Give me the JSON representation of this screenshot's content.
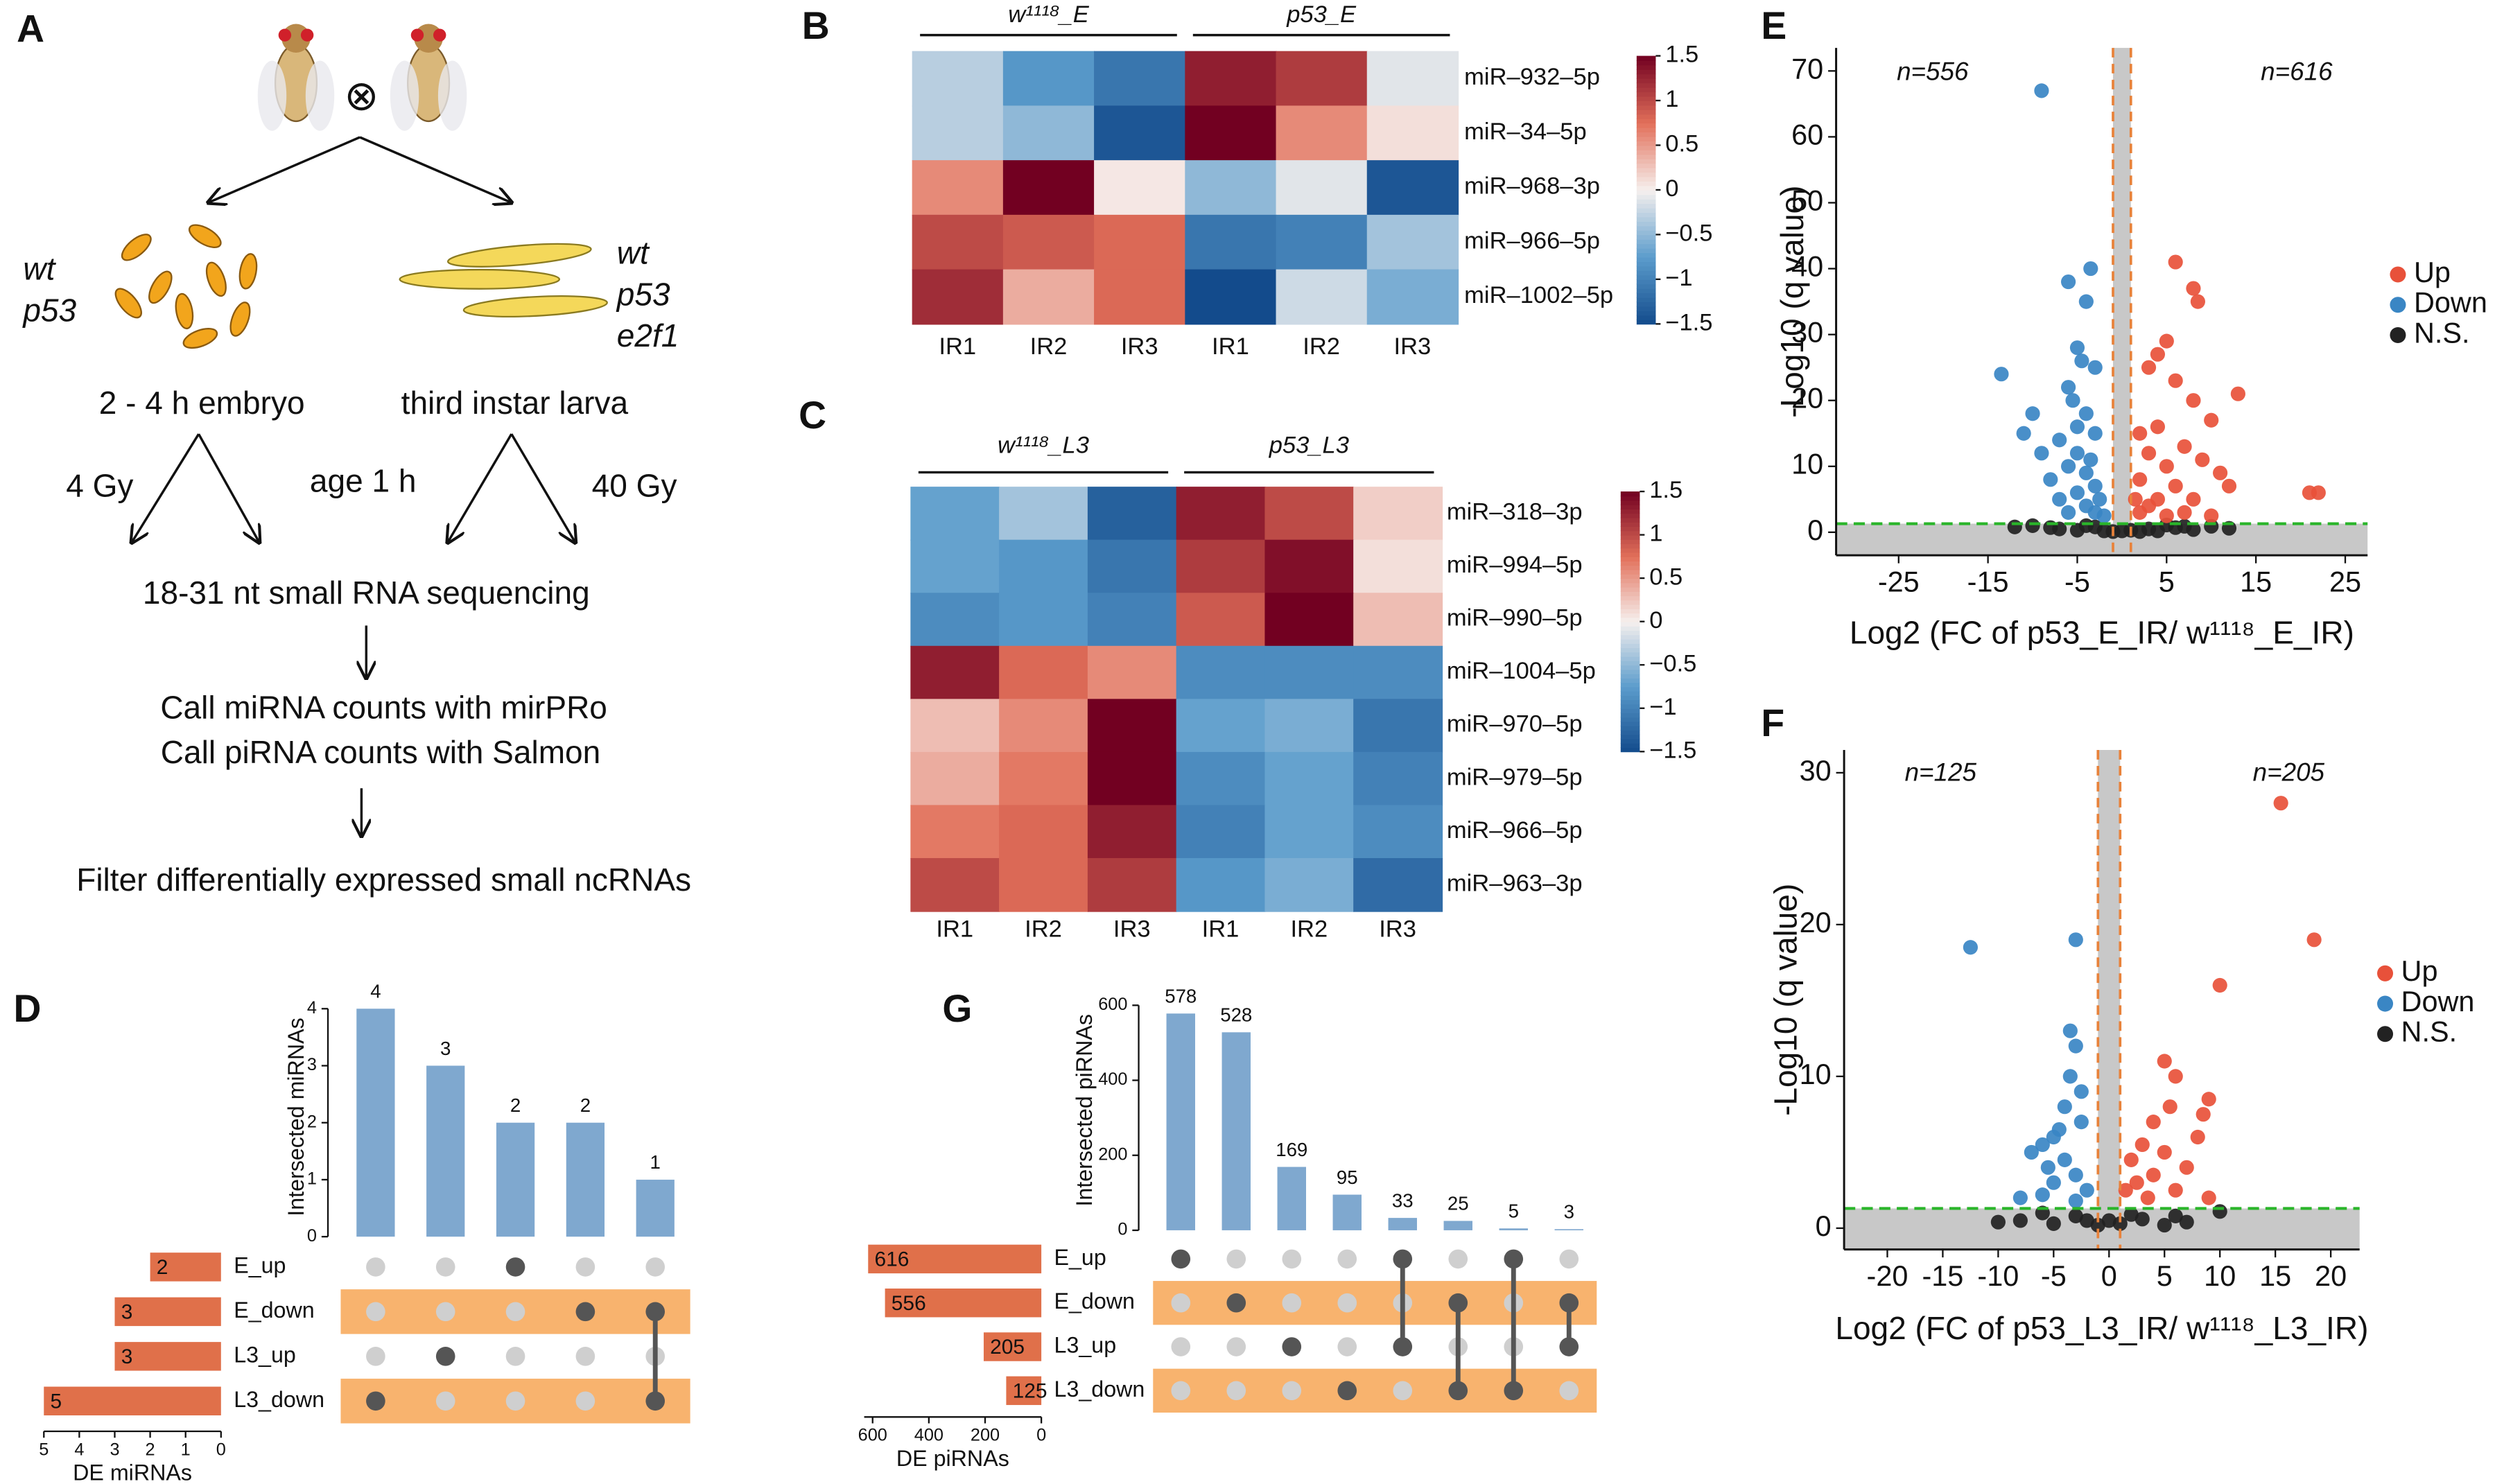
{
  "diagram": {
    "label": "A",
    "cross": "⊗",
    "left_genotypes": [
      "wt",
      "p53"
    ],
    "right_genotypes": [
      "wt",
      "p53",
      "e2f1"
    ],
    "embryo": "2 - 4 h embryo",
    "larva": "third instar larva",
    "dose_left": "4 Gy",
    "age": "age 1 h",
    "dose_right": "40 Gy",
    "step1": "18-31 nt small RNA sequencing",
    "step2a": "Call miRNA counts with mirPRo",
    "step2b": "Call piRNA counts with Salmon",
    "step3": "Filter differentially expressed small ncRNAs"
  },
  "chart_data": [
    {
      "type": "heatmap",
      "label": "B",
      "groups": [
        "w¹¹¹⁸_E",
        "p53_E"
      ],
      "columns": [
        "IR1",
        "IR2",
        "IR3",
        "IR1",
        "IR2",
        "IR3"
      ],
      "rows": [
        "miR–932–5p",
        "miR–34–5p",
        "miR–968–3p",
        "miR–966–5p",
        "miR–1002–5p"
      ],
      "z": [
        [
          -0.3,
          -0.8,
          -1.1,
          1.3,
          1.1,
          -0.1
        ],
        [
          -0.3,
          -0.5,
          -1.4,
          1.5,
          0.6,
          0.1
        ],
        [
          0.6,
          1.5,
          0.05,
          -0.5,
          -0.1,
          -1.4
        ],
        [
          1.0,
          0.9,
          0.8,
          -1.1,
          -1.0,
          -0.4
        ],
        [
          1.2,
          0.4,
          0.8,
          -1.5,
          -0.2,
          -0.6
        ]
      ],
      "zlim": [
        -1.5,
        1.5
      ],
      "zticks": [
        1.5,
        1,
        0.5,
        0,
        {
          "value": -0.5,
          "label": "−0.5"
        },
        {
          "value": -1,
          "label": "−1"
        },
        {
          "value": -1.5,
          "label": "−1.5"
        }
      ],
      "colors": [
        "#134b8c",
        "#5b9ccc",
        "#f6f0ee",
        "#e2705a",
        "#720021"
      ]
    },
    {
      "type": "heatmap",
      "label": "C",
      "groups": [
        "w¹¹¹⁸_L3",
        "p53_L3"
      ],
      "columns": [
        "IR1",
        "IR2",
        "IR3",
        "IR1",
        "IR2",
        "IR3"
      ],
      "rows": [
        "miR–318–3p",
        "miR–994–5p",
        "miR–990–5p",
        "miR–1004–5p",
        "miR–970–5p",
        "miR–979–5p",
        "miR–966–5p",
        "miR–963–3p"
      ],
      "z": [
        [
          -0.7,
          -0.4,
          -1.3,
          1.3,
          1.0,
          0.2
        ],
        [
          -0.7,
          -0.8,
          -1.1,
          1.1,
          1.4,
          0.1
        ],
        [
          -0.9,
          -0.8,
          -1.0,
          0.9,
          1.5,
          0.3
        ],
        [
          1.3,
          0.8,
          0.6,
          -0.9,
          -0.9,
          -0.9
        ],
        [
          0.3,
          0.6,
          1.5,
          -0.7,
          -0.6,
          -1.1
        ],
        [
          0.4,
          0.7,
          1.5,
          -0.9,
          -0.7,
          -1.0
        ],
        [
          0.7,
          0.8,
          1.3,
          -1.0,
          -0.7,
          -0.9
        ],
        [
          1.0,
          0.8,
          1.1,
          -0.8,
          -0.6,
          -1.2
        ]
      ],
      "zlim": [
        -1.5,
        1.5
      ],
      "zticks": [
        1.5,
        1,
        0.5,
        0,
        {
          "value": -0.5,
          "label": "−0.5"
        },
        {
          "value": -1,
          "label": "−1"
        },
        {
          "value": -1.5,
          "label": "−1.5"
        }
      ],
      "colors": [
        "#134b8c",
        "#5b9ccc",
        "#f6f0ee",
        "#e2705a",
        "#720021"
      ]
    },
    {
      "type": "volcano",
      "label": "E",
      "xlabel": "Log2 (FC of p53_E_IR/ w¹¹¹⁸_E_IR)",
      "ylabel": "-Log10 (q value)",
      "annotations": [
        "n=556",
        "n=616"
      ],
      "xlim": [
        -32,
        27.5
      ],
      "ylim": [
        -3.5,
        73.5
      ],
      "xticks": [
        -25,
        -15,
        -5,
        5,
        15,
        25
      ],
      "yticks": [
        0,
        10,
        20,
        30,
        40,
        50,
        60,
        70
      ],
      "fc_cutoff": [
        -1,
        1
      ],
      "q_cutoff": 1.3,
      "series": [
        {
          "name": "Up",
          "color": "#e8513a",
          "x": [
            6,
            8,
            8.5,
            5,
            4,
            3,
            6,
            13,
            8,
            10,
            2,
            4,
            7,
            3,
            5,
            9,
            11,
            2,
            6,
            4,
            8,
            3,
            2,
            12,
            21,
            22,
            5,
            7,
            10,
            1.5
          ],
          "values": [
            41,
            37,
            35,
            29,
            27,
            25,
            23,
            21,
            20,
            17,
            15,
            16,
            13,
            12,
            10,
            11,
            9,
            8,
            7,
            5,
            5,
            4,
            3,
            7,
            6,
            6,
            2.5,
            3,
            2.5,
            5
          ]
        },
        {
          "name": "Down",
          "color": "#3a86c4",
          "x": [
            -9,
            -3.5,
            -6,
            -4,
            -13.5,
            -10,
            -11,
            -5,
            -4.5,
            -3,
            -6,
            -5.5,
            -4,
            -7,
            -3,
            -5,
            -6,
            -4,
            -8,
            -3,
            -5,
            -2.5,
            -4,
            -6,
            -3,
            -2,
            -7,
            -5,
            -3.5,
            -9
          ],
          "values": [
            67,
            40,
            38,
            35,
            24,
            18,
            15,
            28,
            26,
            25,
            22,
            20,
            18,
            14,
            15,
            12,
            10,
            9,
            8,
            7,
            6,
            5,
            4,
            3,
            3,
            2.5,
            5,
            16,
            11,
            12
          ]
        },
        {
          "name": "N.S.",
          "color": "#222222",
          "x": [
            -10,
            -7,
            -5,
            -3,
            -2,
            -1,
            0,
            1,
            2,
            3,
            4,
            6,
            8,
            10,
            12,
            -12,
            -4,
            5,
            7,
            -8
          ],
          "values": [
            1,
            0.5,
            0.3,
            0.8,
            0.2,
            0.1,
            0.2,
            0.3,
            0.1,
            0.5,
            0.2,
            0.7,
            0.4,
            0.9,
            0.6,
            0.8,
            1,
            1.1,
            0.9,
            0.7
          ]
        }
      ]
    },
    {
      "type": "volcano",
      "label": "F",
      "xlabel": "Log2 (FC of p53_L3_IR/ w¹¹¹⁸_L3_IR)",
      "ylabel": "-Log10 (q value)",
      "annotations": [
        "n=125",
        "n=205"
      ],
      "xlim": [
        -23.9,
        22.6
      ],
      "ylim": [
        -1.4,
        31.5
      ],
      "xticks": [
        -20,
        -15,
        -10,
        -5,
        0,
        5,
        10,
        15,
        20
      ],
      "yticks": [
        0,
        10,
        20,
        30
      ],
      "fc_cutoff": [
        -1,
        1
      ],
      "q_cutoff": 1.3,
      "series": [
        {
          "name": "Up",
          "color": "#e8513a",
          "x": [
            15.5,
            18.5,
            10,
            5,
            6,
            9,
            4,
            8,
            3,
            5,
            2,
            7,
            4,
            2.5,
            6,
            3.5,
            9,
            1.5,
            5.5,
            8.5
          ],
          "values": [
            28,
            19,
            16,
            11,
            10,
            8.5,
            7,
            6,
            5.5,
            5,
            4.5,
            4,
            3.5,
            3,
            2.5,
            2,
            2,
            2.5,
            8,
            7.5
          ]
        },
        {
          "name": "Down",
          "color": "#3a86c4",
          "x": [
            -12.5,
            -3,
            -3.5,
            -3,
            -3.5,
            -4,
            -2.5,
            -5,
            -6,
            -4,
            -7,
            -3,
            -5,
            -2,
            -6,
            -8,
            -3,
            -4.5,
            -2.5,
            -5.5
          ],
          "values": [
            18.5,
            19,
            13,
            12,
            10,
            8,
            7,
            6,
            5.5,
            4.5,
            5,
            3.5,
            3,
            2.5,
            2.2,
            2,
            1.8,
            6.5,
            9,
            4
          ]
        },
        {
          "name": "N.S.",
          "color": "#222222",
          "x": [
            -8,
            -5,
            -3,
            -1,
            0,
            1,
            3,
            5,
            7,
            10,
            -10,
            -6,
            2,
            6,
            -2
          ],
          "values": [
            0.5,
            0.3,
            0.8,
            0.2,
            0.5,
            0.3,
            0.6,
            0.2,
            0.4,
            1.1,
            0.4,
            1,
            0.9,
            0.8,
            0.5
          ]
        }
      ]
    },
    {
      "type": "upset",
      "label": "D",
      "ylabel": "Intersected miRNAs",
      "values": [
        4,
        3,
        2,
        2,
        1
      ],
      "ylim": [
        0,
        4.2
      ],
      "yticks": [
        0,
        1,
        2,
        3,
        4
      ],
      "sets": [
        "E_up",
        "E_down",
        "L3_up",
        "L3_down"
      ],
      "set_sizes": [
        2,
        3,
        3,
        5
      ],
      "set_xlim": [
        0,
        5
      ],
      "set_xticks": [
        5,
        4,
        3,
        2,
        1,
        0
      ],
      "set_xlabel": "DE miRNAs",
      "intersections": [
        [
          3
        ],
        [
          2
        ],
        [
          0
        ],
        [
          1
        ],
        [
          1,
          3
        ]
      ],
      "bar_color": "#7fa8cf",
      "set_color": "#e0704a"
    },
    {
      "type": "upset",
      "label": "G",
      "ylabel": "Intersected piRNAs",
      "values": [
        578,
        528,
        169,
        95,
        33,
        25,
        5,
        3
      ],
      "ylim": [
        0,
        640
      ],
      "yticks": [
        0,
        200,
        400,
        600
      ],
      "sets": [
        "E_up",
        "E_down",
        "L3_up",
        "L3_down"
      ],
      "set_sizes": [
        616,
        556,
        205,
        125
      ],
      "set_xlim": [
        0,
        630
      ],
      "set_xticks": [
        600,
        400,
        200,
        0
      ],
      "set_xlabel": "DE piRNAs",
      "intersections": [
        [
          0
        ],
        [
          1
        ],
        [
          2
        ],
        [
          3
        ],
        [
          0,
          2
        ],
        [
          1,
          3
        ],
        [
          0,
          3
        ],
        [
          1,
          2
        ]
      ],
      "bar_color": "#7fa8cf",
      "set_color": "#e0704a"
    }
  ]
}
